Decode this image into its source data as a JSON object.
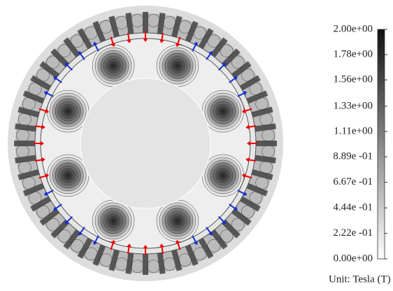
{
  "colorbar": {
    "range": [
      0,
      2
    ],
    "ticks": [
      {
        "value": 2.0,
        "label": "2.00e+00"
      },
      {
        "value": 1.78,
        "label": "1.78e+00"
      },
      {
        "value": 1.56,
        "label": "1.56e+00"
      },
      {
        "value": 1.33,
        "label": "1.33e+00"
      },
      {
        "value": 1.11,
        "label": "1.11e+00"
      },
      {
        "value": 0.889,
        "label": "8.89e -01"
      },
      {
        "value": 0.667,
        "label": "6.67e -01"
      },
      {
        "value": 0.444,
        "label": "4.44e -01"
      },
      {
        "value": 0.222,
        "label": "2.22e -01"
      },
      {
        "value": 0.0,
        "label": "0.00e+00"
      }
    ]
  },
  "unit": "Unit: Tesla (T)"
}
